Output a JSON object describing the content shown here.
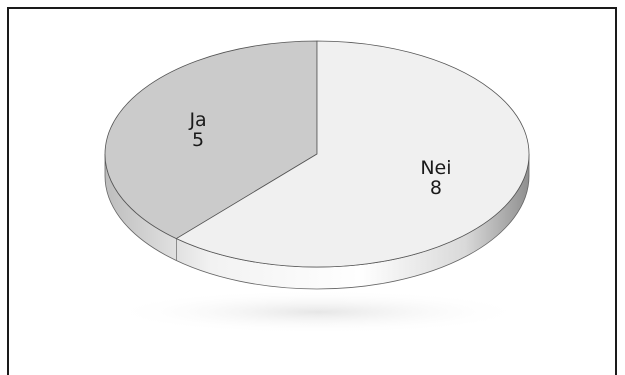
{
  "chart_data": {
    "type": "pie",
    "title": "",
    "slices": [
      {
        "label": "Ja",
        "value": 5,
        "value_text": "5",
        "color": "#cbcbcb"
      },
      {
        "label": "Nei",
        "value": 8,
        "value_text": "8",
        "color": "#f0f0f0"
      }
    ],
    "style": "3d-tilted",
    "edge_color": "#9a9a9a",
    "outline_color": "#555555",
    "legend": "none"
  }
}
